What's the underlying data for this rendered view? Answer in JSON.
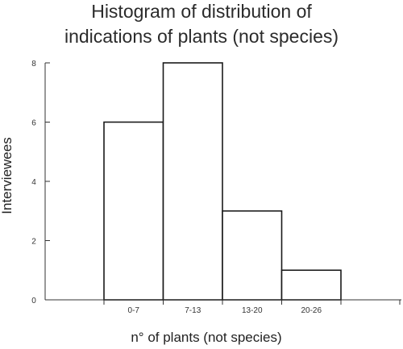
{
  "chart_data": {
    "type": "bar",
    "title_lines": [
      "Histogram of distribution of",
      "indications of plants (not species)"
    ],
    "xlabel": "n° of plants (not species)",
    "ylabel": "Interviewees",
    "categories": [
      "0-7",
      "7-13",
      "13-20",
      "20-26"
    ],
    "values": [
      6,
      8,
      3,
      1
    ],
    "ylim": [
      0,
      8
    ],
    "yticks": [
      "0",
      "2",
      "4",
      "6",
      "8"
    ],
    "grid": false
  }
}
